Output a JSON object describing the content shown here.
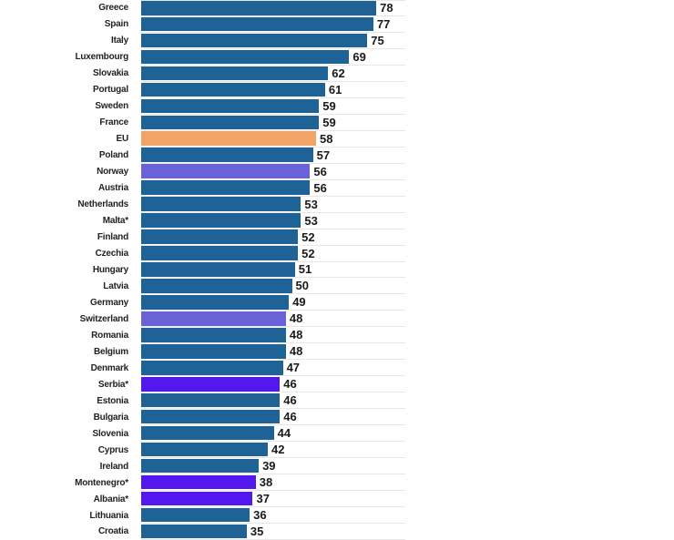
{
  "chart_data": {
    "type": "bar",
    "orientation": "horizontal",
    "title": "",
    "xlabel": "",
    "ylabel": "",
    "xlim": [
      0,
      87.6
    ],
    "grid": "horizontal-row-lines",
    "legend": "none",
    "value_label_position": "end-of-bar",
    "palette": {
      "blue": "#1f6396",
      "orange": "#f0a466",
      "purple": "#6a63d8",
      "violet": "#5318ee"
    },
    "rows": [
      {
        "label": "Greece",
        "value": 78,
        "color": "blue"
      },
      {
        "label": "Spain",
        "value": 77,
        "color": "blue"
      },
      {
        "label": "Italy",
        "value": 75,
        "color": "blue"
      },
      {
        "label": "Luxembourg",
        "value": 69,
        "color": "blue"
      },
      {
        "label": "Slovakia",
        "value": 62,
        "color": "blue"
      },
      {
        "label": "Portugal",
        "value": 61,
        "color": "blue"
      },
      {
        "label": "Sweden",
        "value": 59,
        "color": "blue"
      },
      {
        "label": "France",
        "value": 59,
        "color": "blue"
      },
      {
        "label": "EU",
        "value": 58,
        "color": "orange"
      },
      {
        "label": "Poland",
        "value": 57,
        "color": "blue"
      },
      {
        "label": "Norway",
        "value": 56,
        "color": "purple"
      },
      {
        "label": "Austria",
        "value": 56,
        "color": "blue"
      },
      {
        "label": "Netherlands",
        "value": 53,
        "color": "blue"
      },
      {
        "label": "Malta*",
        "value": 53,
        "color": "blue"
      },
      {
        "label": "Finland",
        "value": 52,
        "color": "blue"
      },
      {
        "label": "Czechia",
        "value": 52,
        "color": "blue"
      },
      {
        "label": "Hungary",
        "value": 51,
        "color": "blue"
      },
      {
        "label": "Latvia",
        "value": 50,
        "color": "blue"
      },
      {
        "label": "Germany",
        "value": 49,
        "color": "blue"
      },
      {
        "label": "Switzerland",
        "value": 48,
        "color": "purple"
      },
      {
        "label": "Romania",
        "value": 48,
        "color": "blue"
      },
      {
        "label": "Belgium",
        "value": 48,
        "color": "blue"
      },
      {
        "label": "Denmark",
        "value": 47,
        "color": "blue"
      },
      {
        "label": "Serbia*",
        "value": 46,
        "color": "violet"
      },
      {
        "label": "Estonia",
        "value": 46,
        "color": "blue"
      },
      {
        "label": "Bulgaria",
        "value": 46,
        "color": "blue"
      },
      {
        "label": "Slovenia",
        "value": 44,
        "color": "blue"
      },
      {
        "label": "Cyprus",
        "value": 42,
        "color": "blue"
      },
      {
        "label": "Ireland",
        "value": 39,
        "color": "blue"
      },
      {
        "label": "Montenegro*",
        "value": 38,
        "color": "violet"
      },
      {
        "label": "Albania*",
        "value": 37,
        "color": "violet"
      },
      {
        "label": "Lithuania",
        "value": 36,
        "color": "blue"
      },
      {
        "label": "Croatia",
        "value": 35,
        "color": "blue"
      }
    ]
  }
}
